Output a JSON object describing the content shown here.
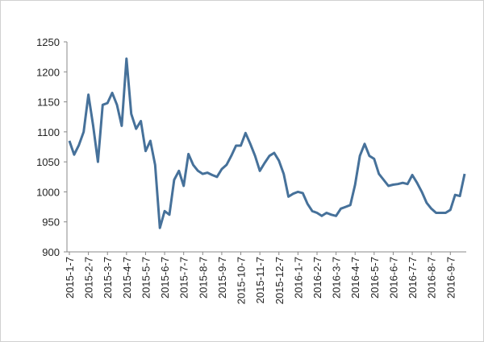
{
  "chart_data": {
    "type": "line",
    "categories": [
      "2015-1-7",
      null,
      null,
      null,
      "2015-2-7",
      null,
      null,
      null,
      "2015-3-7",
      null,
      null,
      null,
      "2015-4-7",
      null,
      null,
      null,
      "2015-5-7",
      null,
      null,
      null,
      "2015-6-7",
      null,
      null,
      null,
      "2015-7-7",
      null,
      null,
      null,
      "2015-8-7",
      null,
      null,
      null,
      "2015-9-7",
      null,
      null,
      null,
      "2015-10-7",
      null,
      null,
      null,
      "2015-11-7",
      null,
      null,
      null,
      "2015-12-7",
      null,
      null,
      null,
      "2016-1-7",
      null,
      null,
      null,
      "2016-2-7",
      null,
      null,
      null,
      "2016-3-7",
      null,
      null,
      null,
      "2016-4-7",
      null,
      null,
      null,
      "2016-5-7",
      null,
      null,
      null,
      "2016-6-7",
      null,
      null,
      null,
      "2016-7-7",
      null,
      null,
      null,
      "2016-8-7",
      null,
      null,
      null,
      "2016-9-7",
      null,
      null,
      null
    ],
    "values": [
      1085,
      1062,
      1078,
      1100,
      1162,
      1110,
      1050,
      1145,
      1148,
      1165,
      1145,
      1110,
      1222,
      1130,
      1105,
      1118,
      1068,
      1085,
      1045,
      940,
      968,
      962,
      1020,
      1035,
      1010,
      1063,
      1045,
      1035,
      1030,
      1032,
      1028,
      1025,
      1038,
      1045,
      1060,
      1077,
      1077,
      1098,
      1080,
      1060,
      1035,
      1048,
      1060,
      1065,
      1052,
      1030,
      992,
      997,
      1000,
      998,
      980,
      968,
      965,
      960,
      965,
      962,
      960,
      972,
      975,
      978,
      1012,
      1060,
      1080,
      1060,
      1055,
      1030,
      1020,
      1010,
      1012,
      1013,
      1015,
      1013,
      1028,
      1015,
      1000,
      982,
      972,
      965,
      965,
      965,
      970,
      995,
      993,
      1030
    ],
    "color": "#46719a",
    "ylim": [
      900,
      1250
    ],
    "yticks": [
      900,
      950,
      1000,
      1050,
      1100,
      1150,
      1200,
      1250
    ],
    "grid": false
  }
}
